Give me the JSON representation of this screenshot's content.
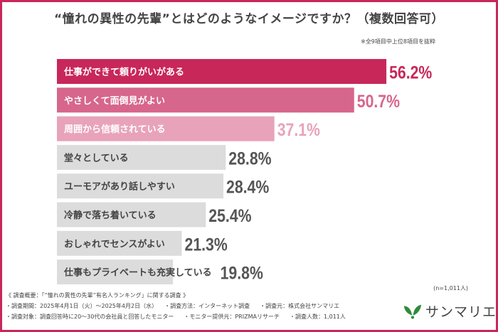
{
  "title": "“憧れの異性の先輩”とはどのようなイメージですか？（複数回答可）",
  "note": "※全9項目中上位8項目を抜粋",
  "sample_size": "(n=1,011人)",
  "footer": {
    "overview": "《 調査概要：「“憧れの異性の先輩”有名人ランキング」に関する調査 》",
    "period": "・調査期間：2025年4月1日（火）～2025年4月2日（水）",
    "method": "・調査方法：インターネット調査",
    "organizer": "・調査元：株式会社サンマリエ",
    "target": "・調査対象：調査回答時に20～30代の会社員と回答したモニター",
    "provider": "・モニター提供元：PRIZMAリサーチ",
    "count": "・調査人数：1,011人"
  },
  "logo": {
    "text": "サンマリエ",
    "color": "#2e8b3a"
  },
  "chart_data": {
    "type": "bar",
    "orientation": "horizontal",
    "title": "“憧れの異性の先輩”とはどのようなイメージですか？（複数回答可）",
    "categories": [
      "仕事ができて頼りがいがある",
      "やさしくて面倒見がよい",
      "周囲から信頼されている",
      "堂々としている",
      "ユーモアがあり話しやすい",
      "冷静で落ち着いている",
      "おしゃれでセンスがよい",
      "仕事もプライベートも充実している"
    ],
    "values": [
      56.2,
      50.7,
      37.1,
      28.8,
      28.4,
      25.4,
      21.3,
      19.8
    ],
    "labels": [
      "56.2%",
      "50.7%",
      "37.1%",
      "28.8%",
      "28.4%",
      "25.4%",
      "21.3%",
      "19.8%"
    ],
    "unit": "%",
    "bar_colors": [
      "#c8275a",
      "#d7668c",
      "#e8a3bb",
      "#dcdcdc",
      "#dcdcdc",
      "#dcdcdc",
      "#dcdcdc",
      "#dcdcdc"
    ],
    "label_colors": [
      "#c8275a",
      "#d7668c",
      "#e8a3bb",
      "#555555",
      "#555555",
      "#555555",
      "#555555",
      "#555555"
    ],
    "text_colors": [
      "#ffffff",
      "#ffffff",
      "#ffffff",
      "#444444",
      "#444444",
      "#444444",
      "#444444",
      "#444444"
    ]
  }
}
